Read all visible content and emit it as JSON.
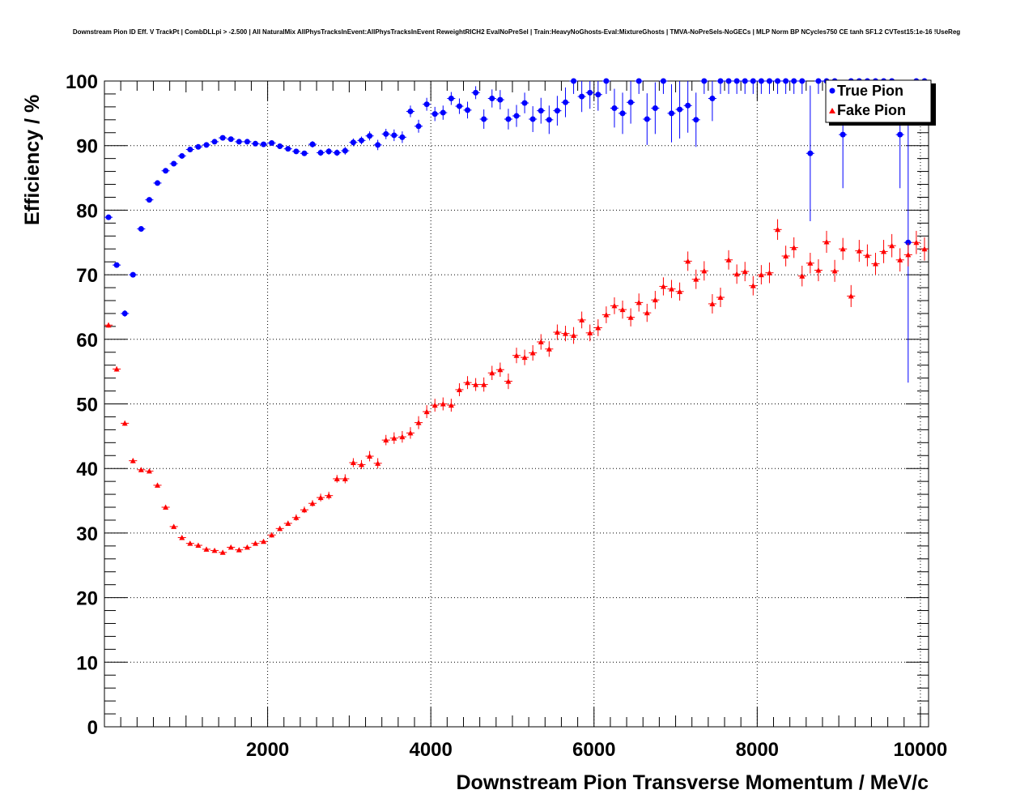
{
  "chart_data": {
    "type": "scatter",
    "title": "Downstream Pion ID Eff. V TrackPt | CombDLLpi > -2.500 | All NaturalMix AllPhysTracksInEvent:AllPhysTracksInEvent ReweightRICH2 EvalNoPreSel | Train:HeavyNoGhosts-Eval:MixtureGhosts | TMVA-NoPreSels-NoGECs | MLP Norm BP NCycles750 CE tanh SF1.2 CVTest15:1e-16 !UseReg",
    "xlabel": "Downstream Pion Transverse Momentum / MeV/c",
    "ylabel": "Efficiency / %",
    "xlim": [
      0,
      10100
    ],
    "ylim": [
      0,
      100
    ],
    "x_ticks": [
      "2000",
      "4000",
      "6000",
      "8000",
      "10000"
    ],
    "y_ticks": [
      "0",
      "10",
      "20",
      "30",
      "40",
      "50",
      "60",
      "70",
      "80",
      "90",
      "100"
    ],
    "grid": true,
    "legend_position": "top-right",
    "series": [
      {
        "name": "True Pion",
        "color": "#0000ff",
        "marker": "circle",
        "x": [
          50,
          150,
          250,
          350,
          450,
          550,
          650,
          750,
          850,
          950,
          1050,
          1150,
          1250,
          1350,
          1450,
          1550,
          1650,
          1750,
          1850,
          1950,
          2050,
          2150,
          2250,
          2350,
          2450,
          2550,
          2650,
          2750,
          2850,
          2950,
          3050,
          3150,
          3250,
          3350,
          3450,
          3550,
          3650,
          3750,
          3850,
          3950,
          4050,
          4150,
          4250,
          4350,
          4450,
          4550,
          4650,
          4750,
          4850,
          4950,
          5050,
          5150,
          5250,
          5350,
          5450,
          5550,
          5650,
          5750,
          5850,
          5950,
          6050,
          6150,
          6250,
          6350,
          6450,
          6550,
          6650,
          6750,
          6850,
          6950,
          7050,
          7150,
          7250,
          7350,
          7450,
          7550,
          7650,
          7750,
          7850,
          7950,
          8050,
          8150,
          8250,
          8350,
          8450,
          8550,
          8650,
          8750,
          8850,
          8950,
          9050,
          9150,
          9250,
          9350,
          9450,
          9550,
          9650,
          9750,
          9850,
          9950,
          10050
        ],
        "y": [
          78.9,
          71.5,
          64.0,
          70.0,
          77.1,
          81.6,
          84.2,
          86.1,
          87.2,
          88.4,
          89.4,
          89.8,
          90.1,
          90.6,
          91.2,
          91.0,
          90.6,
          90.6,
          90.3,
          90.2,
          90.4,
          89.9,
          89.5,
          89.1,
          88.8,
          90.2,
          88.9,
          89.1,
          88.9,
          89.2,
          90.5,
          90.8,
          91.5,
          90.1,
          91.8,
          91.6,
          91.3,
          95.3,
          93.0,
          96.4,
          94.9,
          95.1,
          97.3,
          96.1,
          95.5,
          98.2,
          94.1,
          97.3,
          97.1,
          94.1,
          94.6,
          96.6,
          94.1,
          95.4,
          94.0,
          95.4,
          96.7,
          100.0,
          97.6,
          98.2,
          97.9,
          100.0,
          95.8,
          95.0,
          96.7,
          100.0,
          94.1,
          95.8,
          100.0,
          95.0,
          95.6,
          96.2,
          94.0,
          100.0,
          97.3,
          100.0,
          100.0,
          100.0,
          100.0,
          100.0,
          100.0,
          100.0,
          100.0,
          100.0,
          100.0,
          100.0,
          88.8,
          100.0,
          100.0,
          100.0,
          91.7,
          100.0,
          100.0,
          100.0,
          100.0,
          100.0,
          100.0,
          91.7,
          75.0,
          100.0,
          100.0
        ],
        "yerr": [
          0.4,
          0.4,
          0.5,
          0.4,
          0.4,
          0.4,
          0.3,
          0.3,
          0.3,
          0.3,
          0.3,
          0.3,
          0.3,
          0.3,
          0.3,
          0.3,
          0.3,
          0.3,
          0.3,
          0.3,
          0.3,
          0.4,
          0.4,
          0.4,
          0.4,
          0.5,
          0.5,
          0.5,
          0.5,
          0.6,
          0.6,
          0.6,
          0.7,
          0.8,
          0.8,
          0.9,
          0.9,
          0.9,
          1.0,
          1.0,
          1.1,
          1.1,
          1.0,
          1.2,
          1.3,
          1.0,
          1.5,
          1.4,
          1.5,
          1.6,
          1.7,
          1.6,
          2.0,
          2.0,
          2.2,
          2.3,
          2.3,
          2.0,
          2.4,
          2.5,
          2.5,
          2.0,
          3.0,
          3.2,
          3.3,
          2.0,
          4.0,
          4.0,
          2.0,
          4.5,
          4.5,
          4.2,
          4.2,
          2.0,
          3.5,
          2.0,
          2.0,
          2.0,
          2.0,
          2.0,
          2.0,
          2.0,
          2.0,
          2.0,
          2.0,
          2.0,
          10.5,
          2.0,
          2.0,
          2.0,
          8.3,
          2.0,
          2.0,
          2.0,
          2.0,
          2.0,
          2.0,
          8.3,
          21.7,
          2.0,
          2.0
        ]
      },
      {
        "name": "Fake Pion",
        "color": "#ff0000",
        "marker": "triangle",
        "x": [
          50,
          150,
          250,
          350,
          450,
          550,
          650,
          750,
          850,
          950,
          1050,
          1150,
          1250,
          1350,
          1450,
          1550,
          1650,
          1750,
          1850,
          1950,
          2050,
          2150,
          2250,
          2350,
          2450,
          2550,
          2650,
          2750,
          2850,
          2950,
          3050,
          3150,
          3250,
          3350,
          3450,
          3550,
          3650,
          3750,
          3850,
          3950,
          4050,
          4150,
          4250,
          4350,
          4450,
          4550,
          4650,
          4750,
          4850,
          4950,
          5050,
          5150,
          5250,
          5350,
          5450,
          5550,
          5650,
          5750,
          5850,
          5950,
          6050,
          6150,
          6250,
          6350,
          6450,
          6550,
          6650,
          6750,
          6850,
          6950,
          7050,
          7150,
          7250,
          7350,
          7450,
          7550,
          7650,
          7750,
          7850,
          7950,
          8050,
          8150,
          8250,
          8350,
          8450,
          8550,
          8650,
          8750,
          8850,
          8950,
          9050,
          9150,
          9250,
          9350,
          9450,
          9550,
          9650,
          9750,
          9850,
          9950,
          10050
        ],
        "y": [
          62.2,
          55.4,
          47.0,
          41.2,
          39.8,
          39.6,
          37.4,
          34.0,
          31.0,
          29.3,
          28.4,
          28.1,
          27.5,
          27.3,
          27.0,
          27.8,
          27.4,
          27.8,
          28.4,
          28.7,
          29.7,
          30.7,
          31.5,
          32.4,
          33.6,
          34.6,
          35.5,
          35.8,
          38.4,
          38.4,
          40.9,
          40.6,
          41.9,
          40.8,
          44.4,
          44.7,
          44.9,
          45.5,
          47.1,
          48.8,
          49.8,
          50.0,
          49.8,
          52.2,
          53.3,
          53.0,
          53.0,
          54.8,
          55.3,
          53.5,
          57.5,
          57.2,
          57.9,
          59.6,
          58.5,
          61.1,
          60.9,
          60.6,
          63.0,
          61.0,
          61.8,
          63.8,
          65.2,
          64.6,
          63.4,
          65.7,
          64.1,
          66.1,
          68.2,
          67.8,
          67.4,
          72.1,
          69.3,
          70.6,
          65.5,
          66.5,
          72.3,
          70.1,
          70.5,
          68.3,
          70.0,
          70.3,
          77.0,
          72.9,
          74.2,
          69.8,
          71.8,
          70.7,
          75.1,
          70.6,
          74.0,
          66.7,
          73.7,
          73.0,
          71.7,
          73.6,
          74.5,
          72.3,
          73.1,
          75.0,
          74.0
        ],
        "yerr": [
          0.4,
          0.4,
          0.4,
          0.4,
          0.3,
          0.3,
          0.3,
          0.3,
          0.3,
          0.3,
          0.3,
          0.3,
          0.3,
          0.3,
          0.3,
          0.3,
          0.3,
          0.3,
          0.3,
          0.3,
          0.4,
          0.4,
          0.4,
          0.5,
          0.5,
          0.5,
          0.6,
          0.6,
          0.6,
          0.7,
          0.7,
          0.7,
          0.8,
          0.8,
          0.8,
          0.9,
          0.9,
          0.9,
          1.0,
          1.0,
          1.0,
          1.0,
          1.0,
          1.0,
          1.0,
          1.0,
          1.1,
          1.1,
          1.1,
          1.2,
          1.2,
          1.2,
          1.2,
          1.2,
          1.2,
          1.2,
          1.2,
          1.3,
          1.3,
          1.3,
          1.3,
          1.3,
          1.3,
          1.4,
          1.4,
          1.4,
          1.4,
          1.4,
          1.4,
          1.4,
          1.4,
          1.5,
          1.5,
          1.5,
          1.5,
          1.5,
          1.5,
          1.5,
          1.5,
          1.5,
          1.5,
          1.6,
          1.6,
          1.6,
          1.6,
          1.6,
          1.6,
          1.7,
          1.7,
          1.7,
          1.7,
          1.7,
          1.7,
          1.7,
          1.7,
          1.8,
          1.8,
          1.8,
          1.8,
          1.8,
          1.8
        ]
      }
    ]
  }
}
